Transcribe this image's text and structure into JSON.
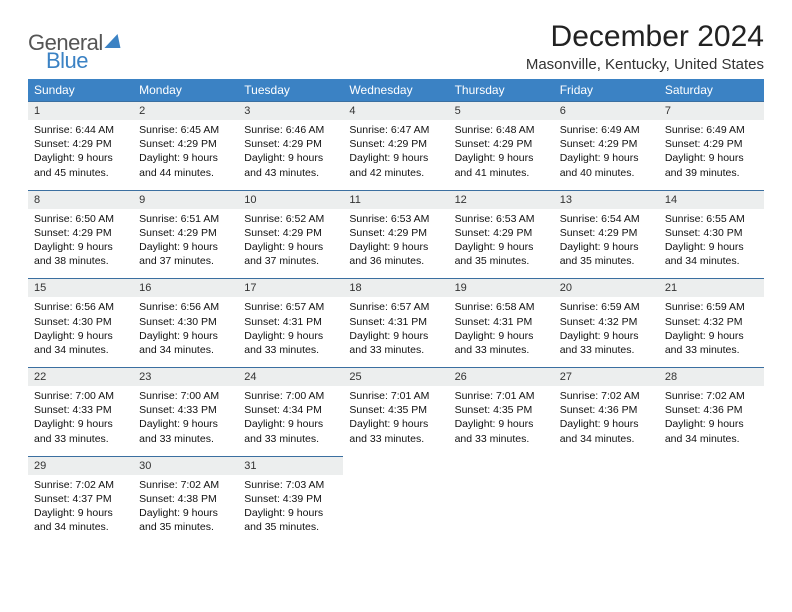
{
  "brand": {
    "word1": "General",
    "word2": "Blue"
  },
  "title": "December 2024",
  "location": "Masonville, Kentucky, United States",
  "colors": {
    "header_bg": "#3b82c4",
    "daynum_bg": "#eceeee",
    "rule": "#3b6fa0",
    "text": "#111111",
    "bg": "#ffffff"
  },
  "typography": {
    "base_pt": 10.5,
    "title_pt": 30,
    "location_pt": 15,
    "th_pt": 12
  },
  "weekdays": [
    "Sunday",
    "Monday",
    "Tuesday",
    "Wednesday",
    "Thursday",
    "Friday",
    "Saturday"
  ],
  "days": [
    {
      "n": 1,
      "sr": "6:44 AM",
      "ss": "4:29 PM",
      "dl": "9 hours and 45 minutes."
    },
    {
      "n": 2,
      "sr": "6:45 AM",
      "ss": "4:29 PM",
      "dl": "9 hours and 44 minutes."
    },
    {
      "n": 3,
      "sr": "6:46 AM",
      "ss": "4:29 PM",
      "dl": "9 hours and 43 minutes."
    },
    {
      "n": 4,
      "sr": "6:47 AM",
      "ss": "4:29 PM",
      "dl": "9 hours and 42 minutes."
    },
    {
      "n": 5,
      "sr": "6:48 AM",
      "ss": "4:29 PM",
      "dl": "9 hours and 41 minutes."
    },
    {
      "n": 6,
      "sr": "6:49 AM",
      "ss": "4:29 PM",
      "dl": "9 hours and 40 minutes."
    },
    {
      "n": 7,
      "sr": "6:49 AM",
      "ss": "4:29 PM",
      "dl": "9 hours and 39 minutes."
    },
    {
      "n": 8,
      "sr": "6:50 AM",
      "ss": "4:29 PM",
      "dl": "9 hours and 38 minutes."
    },
    {
      "n": 9,
      "sr": "6:51 AM",
      "ss": "4:29 PM",
      "dl": "9 hours and 37 minutes."
    },
    {
      "n": 10,
      "sr": "6:52 AM",
      "ss": "4:29 PM",
      "dl": "9 hours and 37 minutes."
    },
    {
      "n": 11,
      "sr": "6:53 AM",
      "ss": "4:29 PM",
      "dl": "9 hours and 36 minutes."
    },
    {
      "n": 12,
      "sr": "6:53 AM",
      "ss": "4:29 PM",
      "dl": "9 hours and 35 minutes."
    },
    {
      "n": 13,
      "sr": "6:54 AM",
      "ss": "4:29 PM",
      "dl": "9 hours and 35 minutes."
    },
    {
      "n": 14,
      "sr": "6:55 AM",
      "ss": "4:30 PM",
      "dl": "9 hours and 34 minutes."
    },
    {
      "n": 15,
      "sr": "6:56 AM",
      "ss": "4:30 PM",
      "dl": "9 hours and 34 minutes."
    },
    {
      "n": 16,
      "sr": "6:56 AM",
      "ss": "4:30 PM",
      "dl": "9 hours and 34 minutes."
    },
    {
      "n": 17,
      "sr": "6:57 AM",
      "ss": "4:31 PM",
      "dl": "9 hours and 33 minutes."
    },
    {
      "n": 18,
      "sr": "6:57 AM",
      "ss": "4:31 PM",
      "dl": "9 hours and 33 minutes."
    },
    {
      "n": 19,
      "sr": "6:58 AM",
      "ss": "4:31 PM",
      "dl": "9 hours and 33 minutes."
    },
    {
      "n": 20,
      "sr": "6:59 AM",
      "ss": "4:32 PM",
      "dl": "9 hours and 33 minutes."
    },
    {
      "n": 21,
      "sr": "6:59 AM",
      "ss": "4:32 PM",
      "dl": "9 hours and 33 minutes."
    },
    {
      "n": 22,
      "sr": "7:00 AM",
      "ss": "4:33 PM",
      "dl": "9 hours and 33 minutes."
    },
    {
      "n": 23,
      "sr": "7:00 AM",
      "ss": "4:33 PM",
      "dl": "9 hours and 33 minutes."
    },
    {
      "n": 24,
      "sr": "7:00 AM",
      "ss": "4:34 PM",
      "dl": "9 hours and 33 minutes."
    },
    {
      "n": 25,
      "sr": "7:01 AM",
      "ss": "4:35 PM",
      "dl": "9 hours and 33 minutes."
    },
    {
      "n": 26,
      "sr": "7:01 AM",
      "ss": "4:35 PM",
      "dl": "9 hours and 33 minutes."
    },
    {
      "n": 27,
      "sr": "7:02 AM",
      "ss": "4:36 PM",
      "dl": "9 hours and 34 minutes."
    },
    {
      "n": 28,
      "sr": "7:02 AM",
      "ss": "4:36 PM",
      "dl": "9 hours and 34 minutes."
    },
    {
      "n": 29,
      "sr": "7:02 AM",
      "ss": "4:37 PM",
      "dl": "9 hours and 34 minutes."
    },
    {
      "n": 30,
      "sr": "7:02 AM",
      "ss": "4:38 PM",
      "dl": "9 hours and 35 minutes."
    },
    {
      "n": 31,
      "sr": "7:03 AM",
      "ss": "4:39 PM",
      "dl": "9 hours and 35 minutes."
    }
  ],
  "labels": {
    "sunrise": "Sunrise:",
    "sunset": "Sunset:",
    "daylight": "Daylight:"
  },
  "layout": {
    "cols": 7,
    "start_offset": 0,
    "total_cells": 35
  }
}
